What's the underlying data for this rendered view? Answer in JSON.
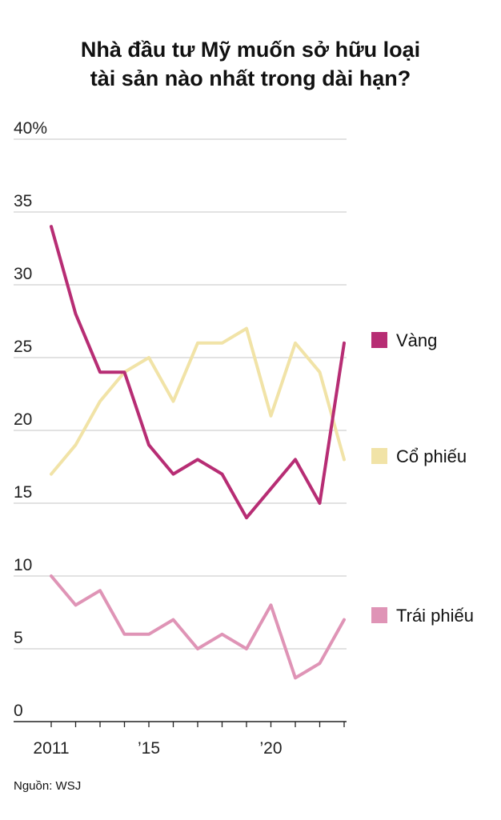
{
  "chart_data": {
    "type": "line",
    "title_lines": [
      "Nhà đầu tư Mỹ muốn sở hữu loại",
      "tài sản nào nhất trong dài hạn?"
    ],
    "x": [
      2011,
      2012,
      2013,
      2014,
      2015,
      2016,
      2017,
      2018,
      2019,
      2020,
      2021,
      2022,
      2023
    ],
    "xlim": [
      2011,
      2023
    ],
    "x_ticks": [
      {
        "value": 2011,
        "label": "2011"
      },
      {
        "value": 2015,
        "label": "’15"
      },
      {
        "value": 2020,
        "label": "’20"
      }
    ],
    "ylim": [
      0,
      40
    ],
    "y_ticks": [
      {
        "value": 0,
        "label": "0"
      },
      {
        "value": 5,
        "label": "5"
      },
      {
        "value": 10,
        "label": "10"
      },
      {
        "value": 15,
        "label": "15"
      },
      {
        "value": 20,
        "label": "20"
      },
      {
        "value": 25,
        "label": "25"
      },
      {
        "value": 30,
        "label": "30"
      },
      {
        "value": 35,
        "label": "35"
      },
      {
        "value": 40,
        "label": "40%"
      }
    ],
    "grid": true,
    "legend_placement": "right",
    "series": [
      {
        "name": "Vàng",
        "color": "#b72d74",
        "values": [
          34,
          28,
          24,
          24,
          19,
          17,
          18,
          17,
          14,
          16,
          18,
          15,
          26
        ]
      },
      {
        "name": "Cổ phiếu",
        "color": "#f1e3a7",
        "values": [
          17,
          19,
          22,
          24,
          25,
          22,
          26,
          26,
          27,
          21,
          26,
          24,
          18
        ]
      },
      {
        "name": "Trái phiếu",
        "color": "#df94b6",
        "values": [
          10,
          8,
          9,
          6,
          6,
          7,
          5,
          6,
          5,
          8,
          3,
          4,
          7
        ]
      }
    ],
    "source": "Nguồn: WSJ"
  }
}
